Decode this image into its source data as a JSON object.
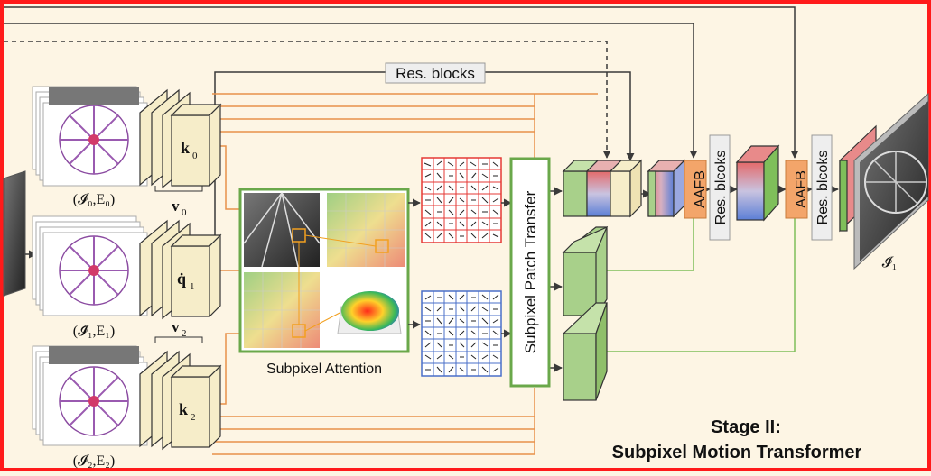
{
  "labels": {
    "res_blocks_top": "Res. blocks",
    "k0": "k",
    "k0_sub": "0",
    "q1": "q̇",
    "q1_sub": "1",
    "k2": "k",
    "k2_sub": "2",
    "v0": "v",
    "v0_sub": "0",
    "v2": "v",
    "v2_sub": "2",
    "input0": "(𝓘₀,E₀)",
    "input1": "(𝓘̂₁,E₁)",
    "input2": "(𝓘₂,E₂)",
    "subpixel_attention": "Subpixel Attention",
    "subpixel_patch_transfer": "Subpixel Patch Transfer",
    "aafb_1": "AAFB",
    "aafb_2": "AAFB",
    "res_blcoks_1": "Res. blcoks",
    "res_blcoks_2": "Res. blcoks",
    "output": "𝓘̇₁",
    "stage_title_line1": "Stage II:",
    "stage_title_line2": "Subpixel Motion Transformer"
  },
  "colors": {
    "background": "#fdf5e4",
    "frame_border": "#ff1a1a",
    "orange_line": "#e8914a",
    "green_line": "#7fbf5a",
    "green_box": "#6a9e4a",
    "aafb_fill": "#f3a56a",
    "red_vectors": "#e53935",
    "blue_vectors": "#4a6fc9",
    "dark_line": "#3a3a3a"
  }
}
